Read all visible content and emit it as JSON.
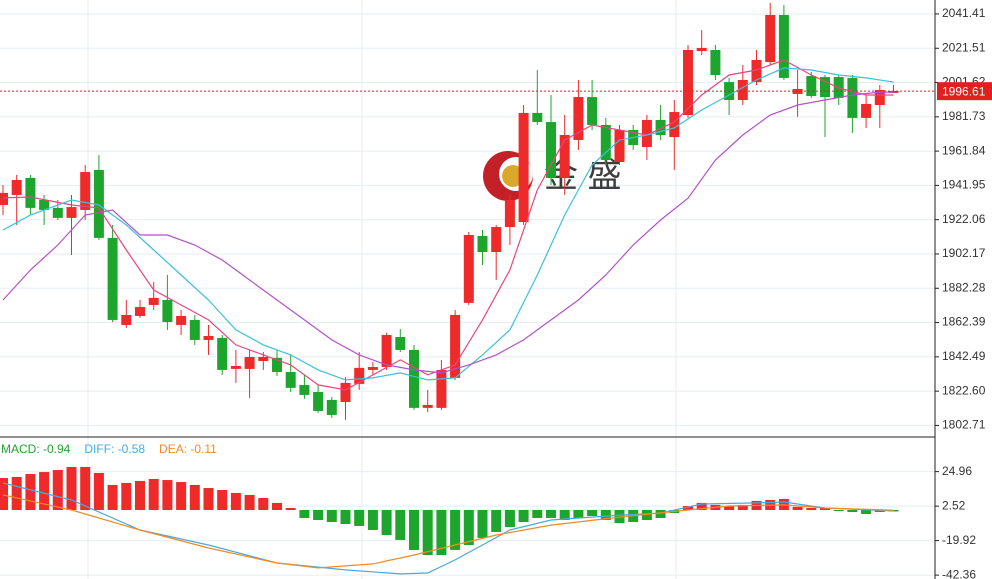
{
  "chart_data": [
    {
      "type": "candlestick",
      "up_color": "#ef2a2a",
      "down_color": "#1ea52d",
      "open": [
        1930.6,
        1936.4,
        1946.3,
        1933.5,
        1928.9,
        1923.1,
        1927.7,
        1950.9,
        1911.5,
        1861.0,
        1866.2,
        1872.6,
        1875.5,
        1861.0,
        1863.9,
        1852.3,
        1853.5,
        1835.5,
        1835.5,
        1840.1,
        1841.9,
        1833.7,
        1826.2,
        1822.1,
        1817.5,
        1816.3,
        1826.8,
        1834.9,
        1836.6,
        1854.0,
        1846.5,
        1812.9,
        1812.9,
        1830.3,
        1873.8,
        1912.6,
        1903.3,
        1917.8,
        1920.7,
        1984.0,
        1978.7,
        1946.3,
        1968.3,
        1993.2,
        1977.0,
        1955.5,
        1974.1,
        1964.2,
        1979.9,
        1970.0,
        1982.8,
        2019.9,
        2020.5,
        2001.9,
        1991.5,
        2001.9,
        2013.5,
        2040.8,
        1995.0,
        2005.4,
        2004.8,
        2004.8,
        2004.3,
        1981.1,
        1988.6,
        1995.6
      ],
      "high": [
        1942.2,
        1948.0,
        1948.0,
        1936.4,
        1933.5,
        1936.4,
        1953.8,
        1959.6,
        1919.0,
        1875.5,
        1875.5,
        1886.0,
        1890.0,
        1869.7,
        1866.8,
        1861.0,
        1855.2,
        1846.5,
        1846.5,
        1845.3,
        1846.5,
        1843.6,
        1832.0,
        1826.2,
        1819.2,
        1830.8,
        1845.3,
        1839.5,
        1856.4,
        1858.7,
        1849.4,
        1823.3,
        1840.7,
        1869.7,
        1915.0,
        1916.1,
        1919.0,
        1936.4,
        1988.6,
        2008.9,
        1994.4,
        1982.8,
        2003.1,
        2003.1,
        1981.1,
        1977.0,
        1977.0,
        1982.8,
        1988.6,
        1991.5,
        2023.4,
        2032.1,
        2023.4,
        2004.3,
        2011.8,
        2020.5,
        2047.8,
        2046.6,
        2008.9,
        2007.8,
        2006.0,
        2006.0,
        2006.0,
        1994.4,
        2000.2,
        2000.2
      ],
      "low": [
        1924.8,
        1919.0,
        1924.8,
        1919.0,
        1921.9,
        1901.6,
        1921.9,
        1910.3,
        1862.7,
        1859.3,
        1865.1,
        1869.7,
        1858.1,
        1855.2,
        1849.4,
        1843.6,
        1832.0,
        1827.4,
        1818.7,
        1834.9,
        1831.4,
        1822.1,
        1818.1,
        1810.0,
        1807.1,
        1805.9,
        1823.3,
        1832.0,
        1834.9,
        1845.3,
        1811.7,
        1810.5,
        1811.7,
        1829.1,
        1872.6,
        1895.8,
        1887.1,
        1907.4,
        1919.0,
        1977.0,
        1942.2,
        1936.4,
        1962.5,
        1974.1,
        1953.8,
        1953.8,
        1962.5,
        1956.7,
        1968.3,
        1950.9,
        1981.1,
        2017.6,
        2003.1,
        1982.8,
        1988.6,
        2000.2,
        2011.8,
        2003.1,
        1981.7,
        1992.7,
        1970.0,
        1988.6,
        1972.4,
        1975.3,
        1975.3,
        1995.8
      ],
      "close": [
        1937.6,
        1945.1,
        1928.9,
        1927.7,
        1923.1,
        1929.4,
        1949.7,
        1911.5,
        1863.9,
        1866.8,
        1871.4,
        1876.7,
        1862.7,
        1866.2,
        1852.3,
        1854.6,
        1834.9,
        1837.2,
        1842.4,
        1842.4,
        1833.7,
        1824.5,
        1820.4,
        1811.1,
        1808.8,
        1827.4,
        1836.1,
        1836.6,
        1855.2,
        1846.5,
        1812.9,
        1814.6,
        1834.9,
        1866.8,
        1913.2,
        1903.3,
        1917.8,
        1933.5,
        1984.0,
        1978.7,
        1946.3,
        1971.2,
        1993.2,
        1977.0,
        1956.7,
        1974.1,
        1965.4,
        1979.9,
        1971.2,
        1984.5,
        2020.5,
        2021.7,
        2006.0,
        1991.5,
        2003.1,
        2014.7,
        2040.8,
        2004.3,
        1997.9,
        1993.8,
        1993.2,
        1992.7,
        1981.1,
        1989.2,
        1997.3,
        1996.7
      ],
      "lines": [
        {
          "color": "#e8457f",
          "x": [
            0,
            2,
            5,
            7,
            9,
            11,
            13,
            15,
            17,
            19,
            21,
            23,
            25,
            27,
            29,
            31,
            33,
            35,
            37,
            39,
            41,
            43,
            45,
            47,
            49,
            51,
            53,
            55,
            57,
            59,
            61,
            63,
            65
          ],
          "values": [
            1934.7,
            1935.2,
            1930.6,
            1928.9,
            1904.5,
            1881.3,
            1872.6,
            1863.9,
            1849.4,
            1843.6,
            1837.8,
            1826.2,
            1823.3,
            1832.0,
            1840.7,
            1832.0,
            1837.8,
            1863.9,
            1892.9,
            1939.3,
            1968.3,
            1977.0,
            1974.1,
            1971.2,
            1978.7,
            1994.4,
            2006.0,
            2008.9,
            2014.7,
            2006.0,
            1998.5,
            1994.4,
            1994.4
          ]
        },
        {
          "color": "#3cc0de",
          "x": [
            0,
            2,
            5,
            7,
            9,
            11,
            13,
            15,
            17,
            19,
            21,
            23,
            25,
            27,
            29,
            31,
            33,
            35,
            37,
            39,
            41,
            43,
            45,
            47,
            49,
            51,
            53,
            55,
            57,
            59,
            61,
            63,
            65
          ],
          "values": [
            1916.1,
            1924.8,
            1933.5,
            1930.6,
            1919.0,
            1904.5,
            1890.0,
            1875.5,
            1858.1,
            1849.4,
            1843.6,
            1834.9,
            1829.1,
            1830.3,
            1833.2,
            1829.1,
            1830.3,
            1843.6,
            1858.1,
            1890.0,
            1924.8,
            1953.8,
            1968.3,
            1971.2,
            1975.3,
            1985.7,
            1994.4,
            2003.1,
            2010.1,
            2008.9,
            2006.0,
            2004.3,
            2001.9
          ]
        },
        {
          "color": "#b452c8",
          "x": [
            0,
            2,
            4,
            6,
            8,
            10,
            12,
            14,
            16,
            18,
            20,
            22,
            24,
            26,
            28,
            30,
            32,
            34,
            36,
            38,
            40,
            42,
            44,
            46,
            48,
            50,
            52,
            54,
            56,
            58,
            60,
            62,
            64,
            65
          ],
          "values": [
            1875.5,
            1892.9,
            1907.4,
            1924.8,
            1927.7,
            1913.2,
            1913.2,
            1907.4,
            1898.7,
            1887.1,
            1875.5,
            1863.9,
            1852.3,
            1843.6,
            1837.8,
            1834.9,
            1833.2,
            1837.8,
            1843.6,
            1852.3,
            1863.9,
            1875.5,
            1890.0,
            1907.4,
            1921.9,
            1934.5,
            1956.7,
            1971.2,
            1982.8,
            1988.6,
            1991.5,
            1994.4,
            1996.1,
            1996.1
          ]
        }
      ],
      "ylim": [
        2049.5,
        1796.0
      ],
      "yticks": [
        2041.41,
        2021.51,
        2001.62,
        1981.73,
        1961.84,
        1941.95,
        1922.06,
        1902.17,
        1882.28,
        1862.39,
        1842.49,
        {
          "value": 1822.6,
          "label": "1822.60"
        },
        1802.71
      ],
      "last_price": 1996.61,
      "last_price_color": "#e02020",
      "watermark": "金 盛"
    },
    {
      "type": "macd",
      "up_color": "#ef2a2a",
      "down_color": "#1ea52d",
      "values": [
        20.8,
        21.5,
        23.4,
        24.7,
        26.0,
        28.0,
        28.0,
        24.1,
        16.3,
        17.6,
        18.9,
        20.2,
        19.5,
        18.2,
        16.3,
        14.3,
        13.0,
        11.1,
        9.8,
        7.8,
        4.6,
        1.3,
        -5.2,
        -6.5,
        -7.8,
        -9.1,
        -10.4,
        -13.0,
        -16.3,
        -19.5,
        -26.0,
        -29.3,
        -29.3,
        -26.0,
        -22.8,
        -18.2,
        -14.3,
        -11.1,
        -7.8,
        -5.2,
        -5.2,
        -6.5,
        -5.2,
        -3.9,
        -6.5,
        -8.5,
        -7.8,
        -6.5,
        -5.2,
        -2.0,
        2.6,
        4.6,
        3.3,
        2.6,
        3.3,
        5.9,
        6.5,
        7.2,
        2.0,
        1.3,
        1.3,
        -0.7,
        -1.3,
        -2.6,
        -1.3,
        -0.94
      ],
      "lines": [
        {
          "color": "#4aa8e0",
          "x": [
            0,
            5,
            10,
            15,
            20,
            25,
            29,
            31,
            33,
            35,
            37,
            40,
            45,
            48,
            51,
            55,
            57,
            60,
            65
          ],
          "values": [
            17.6,
            6.5,
            -13.0,
            -22.8,
            -34.5,
            -39.0,
            -41.6,
            -41.0,
            -32.5,
            -22.8,
            -13.0,
            -6.5,
            -3.3,
            -2.0,
            3.9,
            4.6,
            5.2,
            1.3,
            -0.58
          ]
        },
        {
          "color": "#f08a24",
          "x": [
            0,
            5,
            10,
            15,
            20,
            23,
            27,
            30,
            33,
            36,
            40,
            45,
            50,
            53,
            57,
            60,
            65
          ],
          "values": [
            9.8,
            0,
            -13.0,
            -24.7,
            -34.5,
            -37.7,
            -35.1,
            -29.3,
            -22.8,
            -16.3,
            -9.8,
            -4.6,
            0,
            2.6,
            3.3,
            1.3,
            -0.11
          ]
        }
      ],
      "legend": [
        {
          "text": "MACD: -0.94",
          "color": "#1ea52d"
        },
        {
          "text": "DIFF: -0.58",
          "color": "#4aa8e0"
        },
        {
          "text": "DEA: -0.11",
          "color": "#f08a24"
        }
      ],
      "ylim": [
        47.5,
        -44.9
      ],
      "yticks": [
        24.96,
        2.52,
        -19.92,
        -42.36
      ]
    }
  ]
}
